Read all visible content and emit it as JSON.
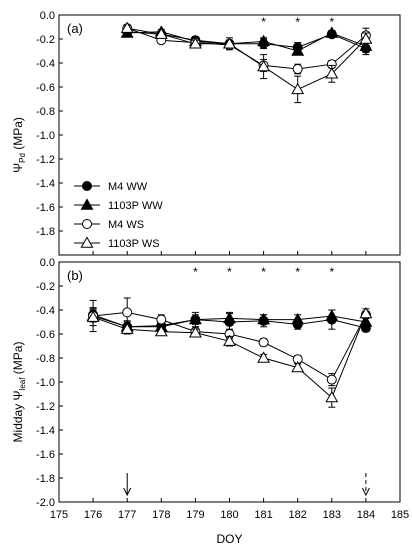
{
  "chart_data": [
    {
      "type": "line",
      "panel_label": "(a)",
      "ylabel_main": "Ψ",
      "ylabel_sub": "Pd",
      "ylabel_unit": " (MPa)",
      "ylim": [
        -2.0,
        0.0
      ],
      "yticks": [
        0.0,
        -0.2,
        -0.4,
        -0.6,
        -0.8,
        -1.0,
        -1.2,
        -1.4,
        -1.6,
        -1.8
      ],
      "ytick_labels": [
        "0.0",
        "-0.2",
        "-0.4",
        "-0.6",
        "-0.8",
        "-1.0",
        "-1.2",
        "-1.4",
        "-1.6",
        "-1.8"
      ],
      "x": [
        177,
        178,
        179,
        180,
        181,
        182,
        183,
        184
      ],
      "significance_days": [
        181,
        182,
        183
      ],
      "significance_symbol": "*",
      "legend": {
        "position": "left-middle"
      },
      "series": [
        {
          "name": "M4 WW",
          "marker": "circle-filled",
          "values": [
            -0.14,
            -0.16,
            -0.21,
            -0.24,
            -0.24,
            -0.27,
            -0.16,
            -0.28
          ],
          "errors": [
            0.02,
            0.02,
            0.03,
            0.03,
            0.04,
            0.04,
            0.02,
            0.05
          ]
        },
        {
          "name": "1103P WW",
          "marker": "triangle-filled",
          "values": [
            -0.15,
            -0.14,
            -0.22,
            -0.24,
            -0.22,
            -0.3,
            -0.15,
            -0.26
          ],
          "errors": [
            0.02,
            0.02,
            0.03,
            0.03,
            0.03,
            0.03,
            0.02,
            0.05
          ]
        },
        {
          "name": "M4 WS",
          "marker": "circle-open",
          "values": [
            -0.11,
            -0.21,
            -0.23,
            -0.25,
            -0.42,
            -0.45,
            -0.41,
            -0.17
          ],
          "errors": [
            0.02,
            0.02,
            0.03,
            0.03,
            0.05,
            0.04,
            0.03,
            0.06
          ]
        },
        {
          "name": "1103P WS",
          "marker": "triangle-open",
          "values": [
            -0.11,
            -0.16,
            -0.24,
            -0.24,
            -0.43,
            -0.62,
            -0.49,
            -0.2
          ],
          "errors": [
            0.02,
            0.02,
            0.03,
            0.05,
            0.1,
            0.11,
            0.07,
            0.05
          ]
        }
      ]
    },
    {
      "type": "line",
      "panel_label": "(b)",
      "ylabel_main": "Midday Ψ",
      "ylabel_sub": "leaf",
      "ylabel_unit": " (MPa)",
      "ylim": [
        -2.0,
        0.0
      ],
      "yticks": [
        0.0,
        -0.2,
        -0.4,
        -0.6,
        -0.8,
        -1.0,
        -1.2,
        -1.4,
        -1.6,
        -1.8,
        -2.0
      ],
      "ytick_labels": [
        "0.0",
        "-0.2",
        "-0.4",
        "-0.6",
        "-0.8",
        "-1.0",
        "-1.2",
        "-1.4",
        "-1.6",
        "-1.8",
        "-2.0"
      ],
      "xlabel": "DOY",
      "xlim": [
        175,
        185
      ],
      "xticks": [
        175,
        176,
        177,
        178,
        179,
        180,
        181,
        182,
        183,
        184,
        185
      ],
      "xtick_labels": [
        "175",
        "176",
        "177",
        "178",
        "179",
        "180",
        "181",
        "182",
        "183",
        "184",
        "185"
      ],
      "x": [
        176,
        177,
        178,
        179,
        180,
        181,
        182,
        183,
        184
      ],
      "significance_days": [
        179,
        180,
        181,
        182,
        183
      ],
      "significance_symbol": "*",
      "arrows": [
        {
          "x": 177,
          "style": "solid"
        },
        {
          "x": 184,
          "style": "dashed"
        }
      ],
      "series": [
        {
          "name": "M4 WW",
          "marker": "circle-filled",
          "values": [
            -0.44,
            -0.54,
            -0.53,
            -0.48,
            -0.5,
            -0.49,
            -0.52,
            -0.48,
            -0.55
          ],
          "errors": [
            0.06,
            0.04,
            0.04,
            0.04,
            0.07,
            0.05,
            0.04,
            0.08,
            0.03
          ]
        },
        {
          "name": "1103P WW",
          "marker": "triangle-filled",
          "values": [
            -0.45,
            -0.54,
            -0.54,
            -0.48,
            -0.47,
            -0.48,
            -0.48,
            -0.45,
            -0.5
          ],
          "errors": [
            0.05,
            0.05,
            0.04,
            0.06,
            0.05,
            0.04,
            0.04,
            0.05,
            0.04
          ]
        },
        {
          "name": "M4 WS",
          "marker": "circle-open",
          "values": [
            -0.45,
            -0.42,
            -0.48,
            -0.58,
            -0.6,
            -0.67,
            -0.81,
            -0.98,
            -0.44
          ],
          "errors": [
            0.13,
            0.12,
            0.04,
            0.04,
            0.04,
            0.03,
            0.03,
            0.05,
            0.03
          ]
        },
        {
          "name": "1103P WS",
          "marker": "triangle-open",
          "values": [
            -0.46,
            -0.56,
            -0.58,
            -0.59,
            -0.66,
            -0.8,
            -0.88,
            -1.13,
            -0.43
          ],
          "errors": [
            0.07,
            0.04,
            0.03,
            0.03,
            0.04,
            0.03,
            0.03,
            0.08,
            0.04
          ]
        }
      ]
    }
  ]
}
